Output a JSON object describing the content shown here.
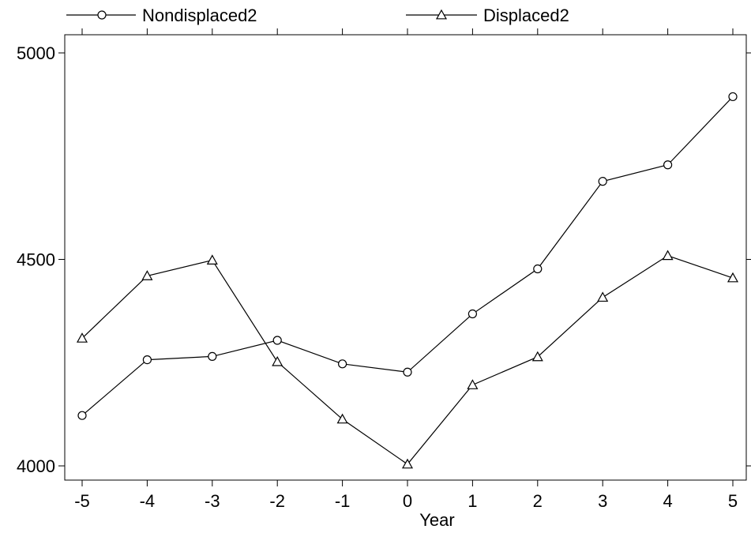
{
  "chart_data": {
    "type": "line",
    "xlabel": "Year",
    "ylabel": "",
    "x": [
      -5,
      -4,
      -3,
      -2,
      -1,
      0,
      1,
      2,
      3,
      4,
      5
    ],
    "x_ticks": [
      "-5",
      "-4",
      "-3",
      "-2",
      "-1",
      "0",
      "1",
      "2",
      "3",
      "4",
      "5"
    ],
    "y_ticks": [
      "4000",
      "4500",
      "5000"
    ],
    "xlim": [
      -5,
      5
    ],
    "ylim": [
      4000,
      5000
    ],
    "grid": false,
    "legend_position": "top",
    "series": [
      {
        "name": "Nondisplaced2",
        "marker": "circle",
        "values": [
          4122,
          4257,
          4265,
          4304,
          4247,
          4227,
          4368,
          4477,
          4689,
          4729,
          4894
        ]
      },
      {
        "name": "Displaced2",
        "marker": "triangle",
        "values": [
          4309,
          4460,
          4498,
          4252,
          4113,
          4004,
          4196,
          4264,
          4408,
          4509,
          4455
        ]
      }
    ]
  }
}
